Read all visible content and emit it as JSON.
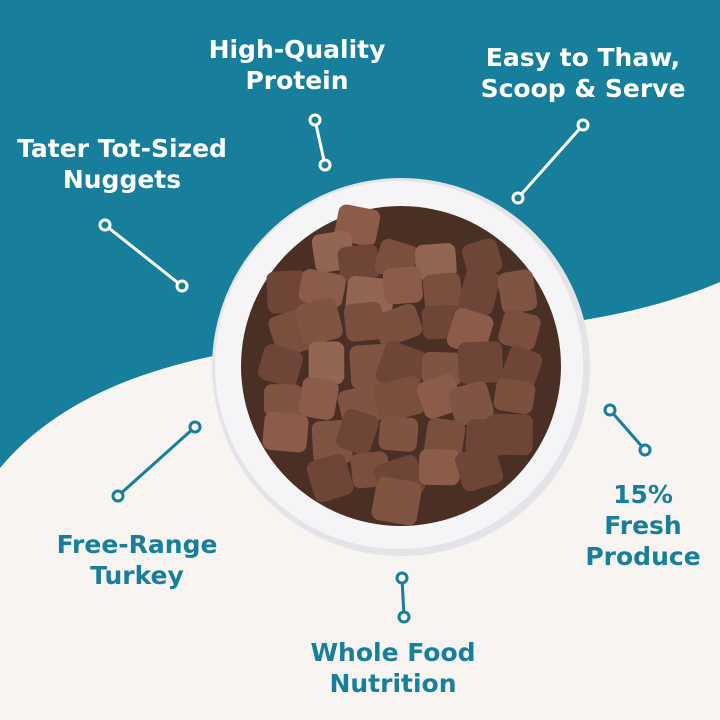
{
  "colors": {
    "teal": "#177e9c",
    "cream": "#f7f4f1",
    "bowl": "#f3f3f5",
    "nugget": "#7a4f3e"
  },
  "features": [
    {
      "lines": [
        "High-Quality",
        "Protein"
      ]
    },
    {
      "lines": [
        "Easy to Thaw,",
        "Scoop & Serve"
      ]
    },
    {
      "lines": [
        "Tater Tot-Sized",
        "Nuggets"
      ]
    },
    {
      "lines": [
        "Free-Range",
        "Turkey"
      ]
    },
    {
      "lines": [
        "15%",
        "Fresh",
        "Produce"
      ]
    },
    {
      "lines": [
        "Whole Food",
        "Nutrition"
      ]
    }
  ],
  "image": {
    "subject": "bowl-of-nuggets"
  }
}
